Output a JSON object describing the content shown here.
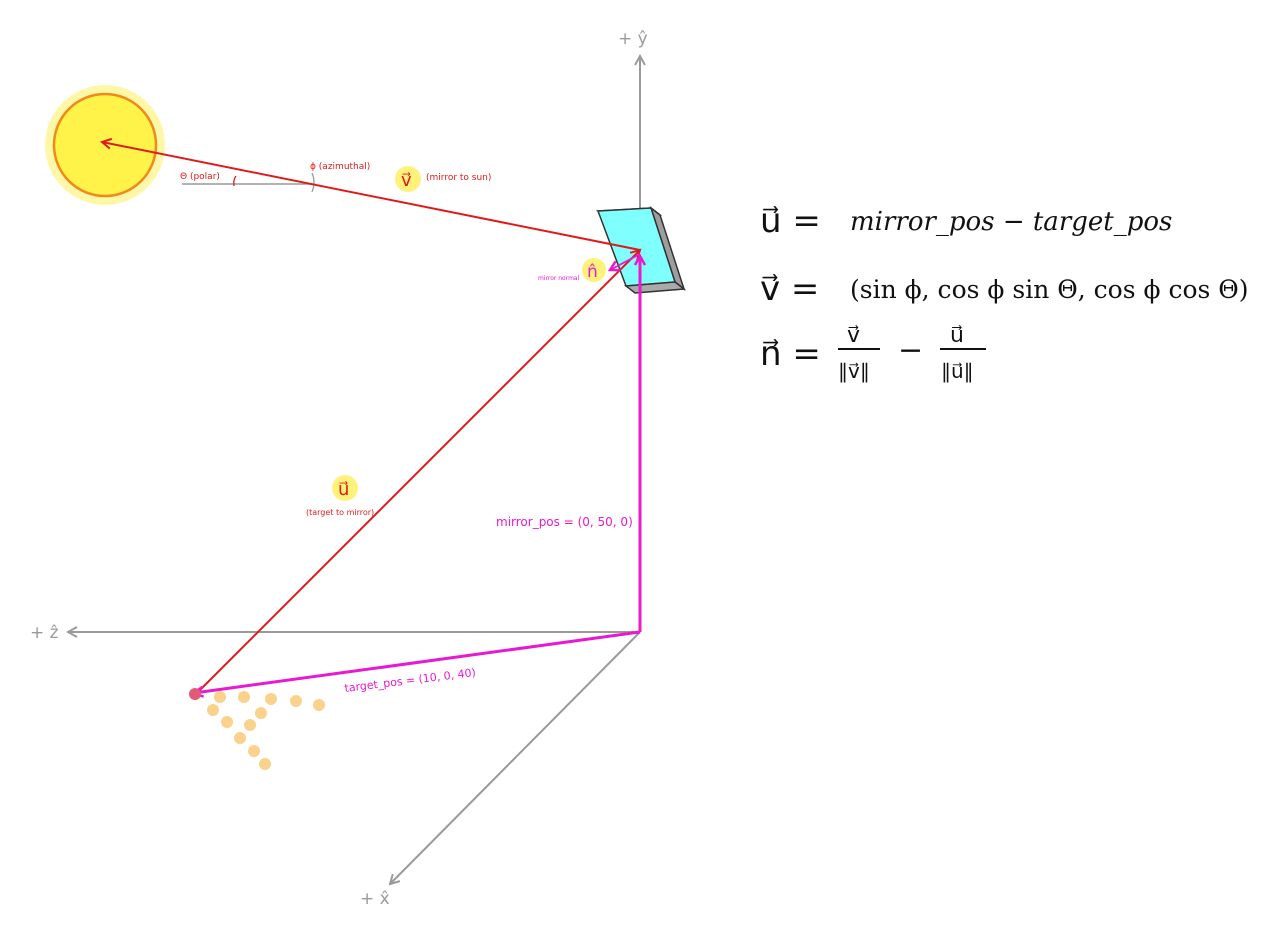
{
  "axes": {
    "y_label": "+ ŷ",
    "z_label": "+ ẑ",
    "x_label": "+ x̂"
  },
  "angles": {
    "theta_label": "Θ (polar)",
    "phi_label": "ϕ (azimuthal)"
  },
  "vectors": {
    "v_symbol": "v⃗",
    "v_caption": "(mirror to sun)",
    "u_symbol": "u⃗",
    "u_caption": "(target to mirror)",
    "n_symbol": "n̂",
    "n_caption": "mirror normal"
  },
  "positions": {
    "mirror_pos": "mirror_pos = (0, 50, 0)",
    "target_pos": "target_pos = (10, 0, 40)"
  },
  "equations": {
    "u_lhs": "u⃗ =",
    "u_rhs": "mirror_pos − target_pos",
    "v_lhs": "v⃗ =",
    "v_rhs": "(sin ϕ, cos ϕ sin Θ, cos ϕ cos Θ)",
    "n_lhs": "n⃗ =",
    "n_num1": "v⃗",
    "n_den1": "‖v⃗‖",
    "n_minus": "−",
    "n_num2": "u⃗",
    "n_den2": "‖u⃗‖"
  },
  "colors": {
    "axis": "#9a9a9a",
    "sun_fill": "#fff34a",
    "sun_ring": "#f08a1a",
    "sun_glow": "#fff7a8",
    "red": "#e01a1a",
    "magenta": "#e81ad0",
    "mirror_face": "#80ffff",
    "mirror_side": "#bdbdbd",
    "dots": "#fbd28c",
    "target": "#e35a78",
    "highlight": "#fff27a"
  }
}
